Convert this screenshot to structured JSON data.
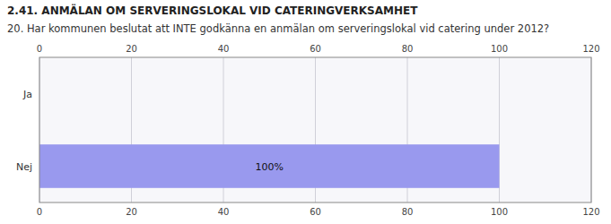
{
  "chart_data": {
    "type": "bar",
    "orientation": "horizontal",
    "title": "2.41. ANMÄLAN OM SERVERINGSLOKAL VID CATERINGVERKSAMHET",
    "subtitle": "20. Har kommunen beslutat att INTE godkänna en anmälan om serveringslokal vid catering under 2012?",
    "categories": [
      "Ja",
      "Nej"
    ],
    "values": [
      0,
      100
    ],
    "data_labels": true,
    "value_labels": [
      null,
      "100%"
    ],
    "color": "#9999ee",
    "xlim": [
      0,
      120
    ],
    "xticks": [
      0,
      20,
      40,
      60,
      80,
      100,
      120
    ],
    "grid": true
  }
}
